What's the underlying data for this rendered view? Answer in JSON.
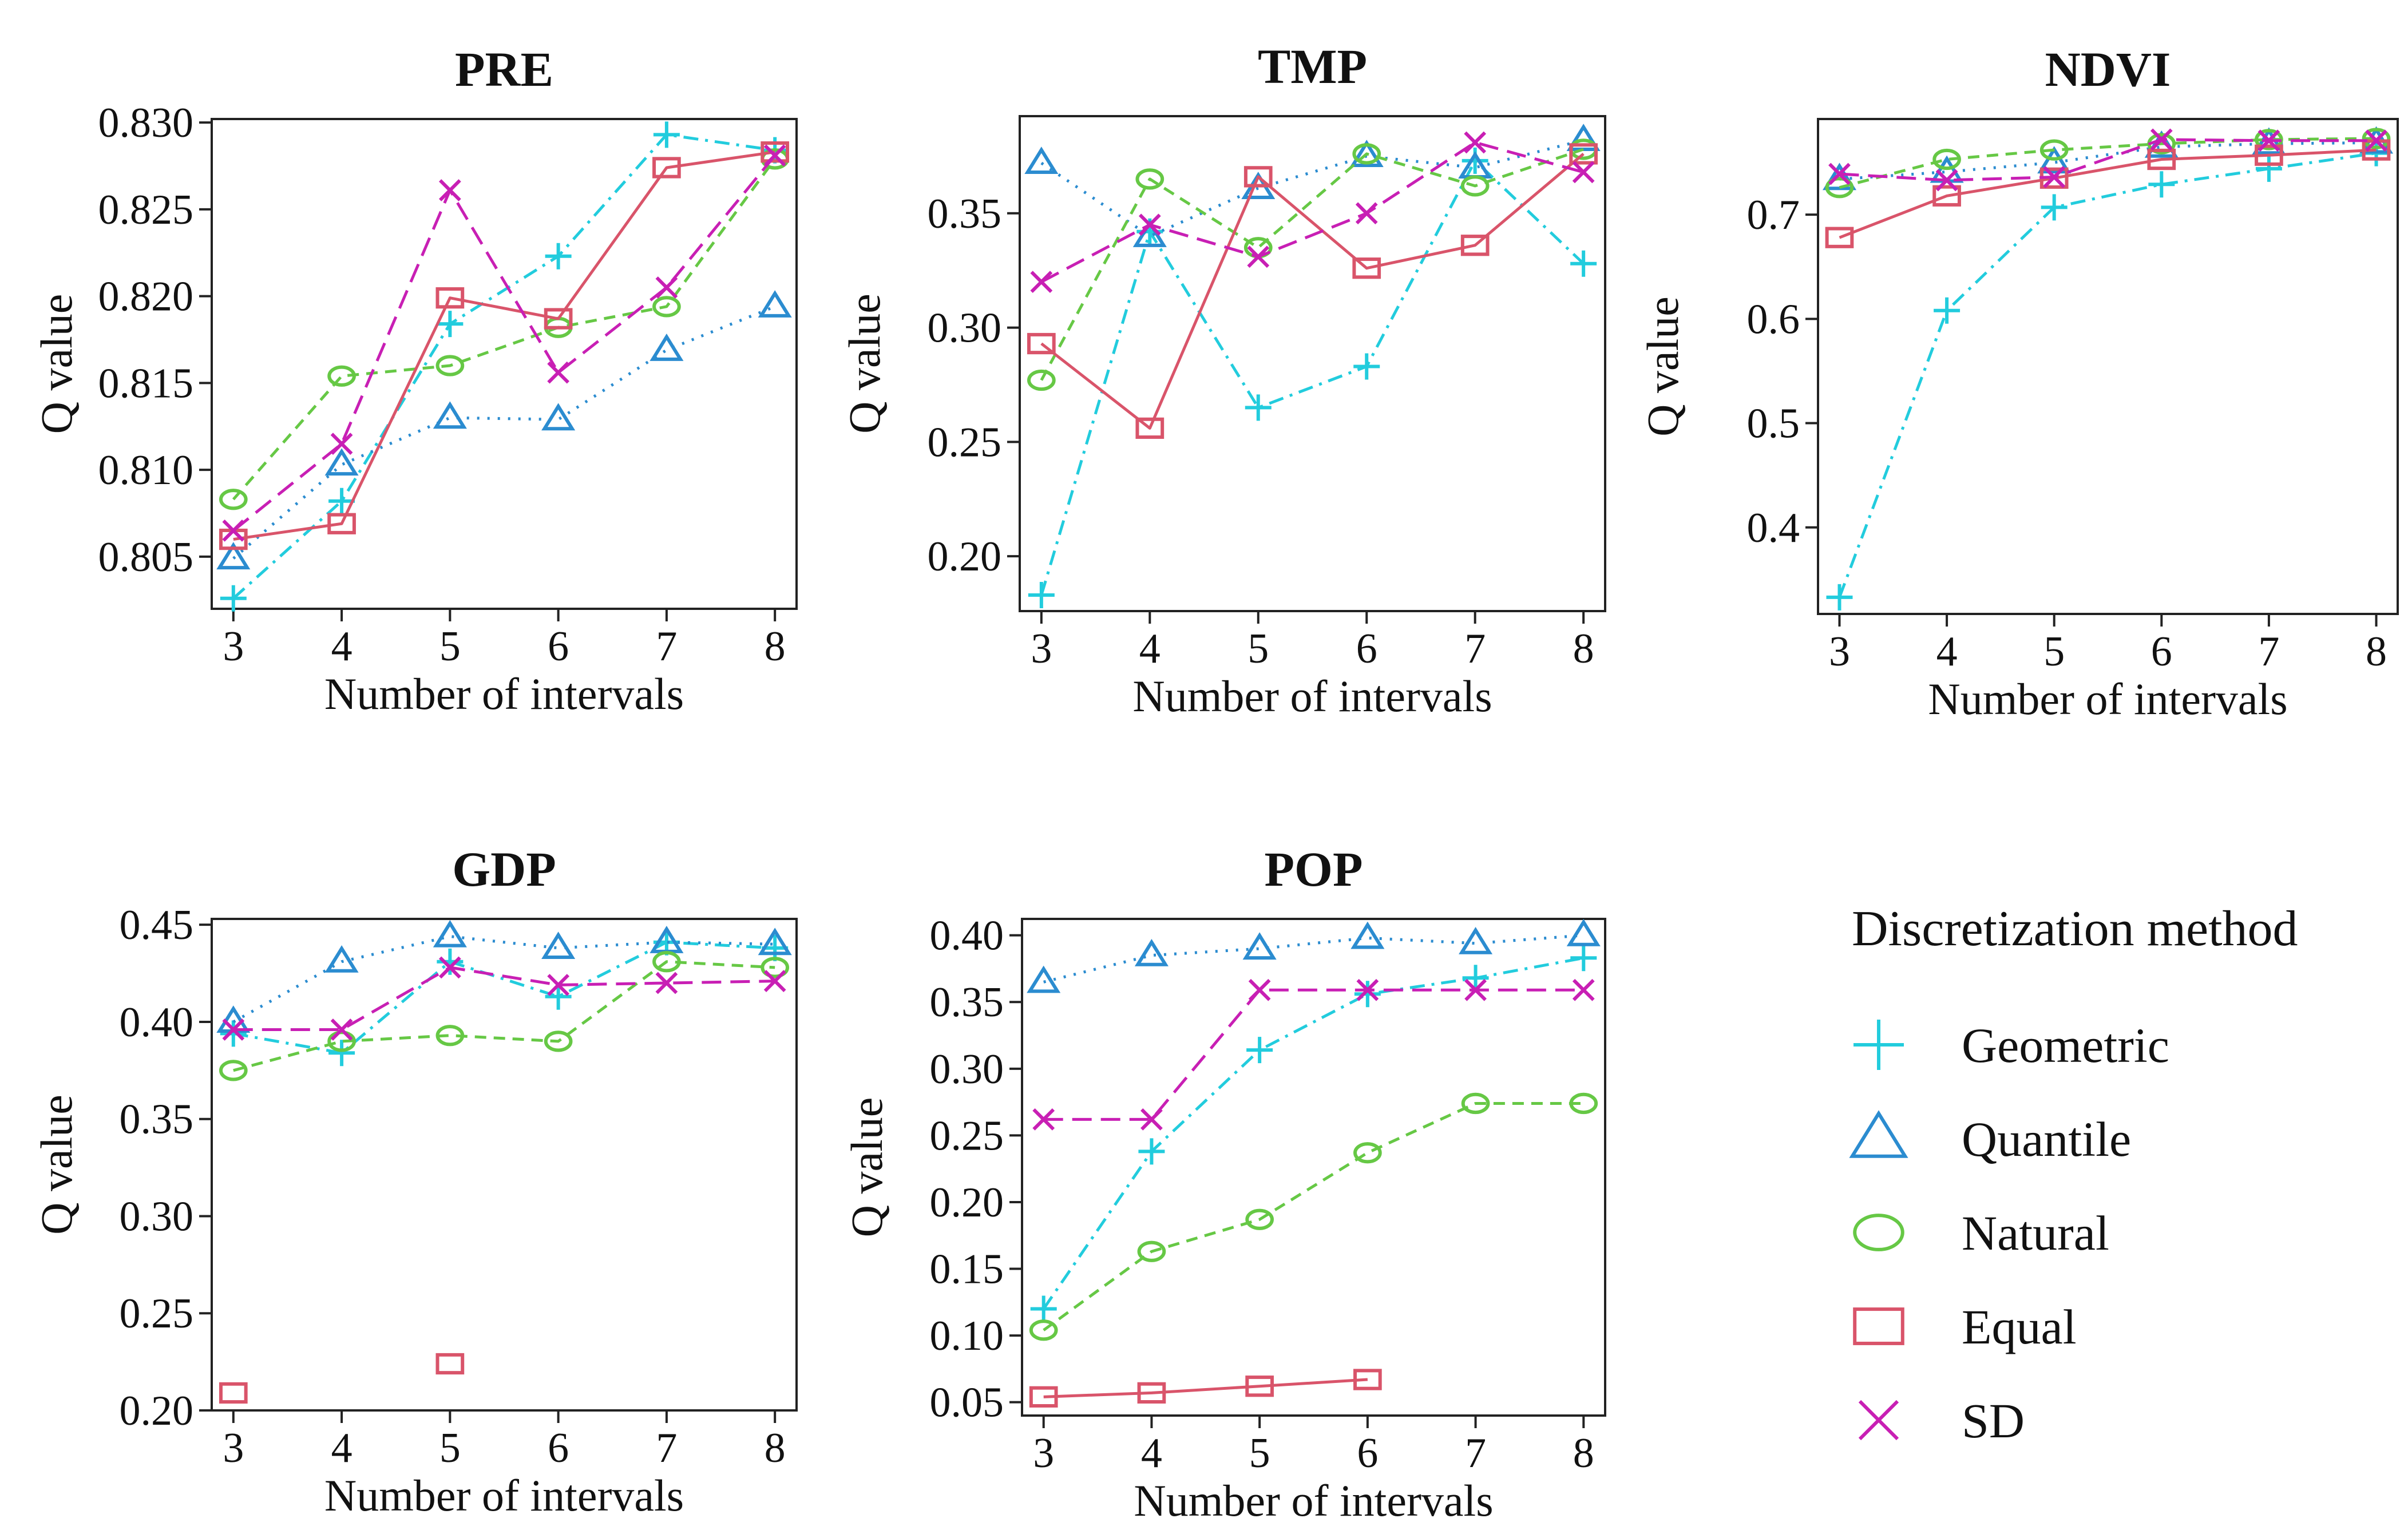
{
  "styles": {
    "Geometric": {
      "color": "#22CCDD",
      "dash": "26 12 5 12",
      "marker": "plus"
    },
    "Quantile": {
      "color": "#2B8CD0",
      "dash": "4 14",
      "marker": "triangle"
    },
    "Natural": {
      "color": "#66C845",
      "dash": "20 13",
      "marker": "circle"
    },
    "Equal": {
      "color": "#D9546A",
      "dash": "",
      "marker": "square"
    },
    "SD": {
      "color": "#C81FB4",
      "dash": "34 16",
      "marker": "x"
    }
  },
  "legend": {
    "title": "Discretization method",
    "items": [
      "Geometric",
      "Quantile",
      "Natural",
      "Equal",
      "SD"
    ]
  },
  "chart_data": [
    {
      "type": "line",
      "title": "PRE",
      "xlabel": "Number of intervals",
      "ylabel": "Q value",
      "x": [
        3,
        4,
        5,
        6,
        7,
        8
      ],
      "ylim": [
        0.802,
        0.8302
      ],
      "yticks": [
        "0.805",
        "0.810",
        "0.815",
        "0.820",
        "0.825",
        "0.830"
      ],
      "series": [
        {
          "name": "Geometric",
          "values": [
            0.8026,
            0.8082,
            0.8184,
            0.8223,
            0.8293,
            0.8284
          ]
        },
        {
          "name": "Quantile",
          "values": [
            0.8049,
            0.8103,
            0.813,
            0.8129,
            0.8169,
            0.8194
          ]
        },
        {
          "name": "Natural",
          "values": [
            0.8083,
            0.8154,
            0.816,
            0.8182,
            0.8194,
            0.8279
          ]
        },
        {
          "name": "Equal",
          "values": [
            0.806,
            0.8069,
            0.8199,
            0.8187,
            0.8274,
            0.8283
          ]
        },
        {
          "name": "SD",
          "values": [
            0.8065,
            0.8115,
            0.8261,
            0.8156,
            0.8205,
            0.8281
          ]
        }
      ]
    },
    {
      "type": "line",
      "title": "TMP",
      "xlabel": "Number of intervals",
      "ylabel": "Q value",
      "x": [
        3,
        4,
        5,
        6,
        7,
        8
      ],
      "ylim": [
        0.176,
        0.3925
      ],
      "yticks": [
        "0.20",
        "0.25",
        "0.30",
        "0.35"
      ],
      "series": [
        {
          "name": "Geometric",
          "values": [
            0.183,
            0.342,
            0.265,
            0.283,
            0.373,
            0.328
          ]
        },
        {
          "name": "Quantile",
          "values": [
            0.372,
            0.34,
            0.361,
            0.375,
            0.37,
            0.382
          ]
        },
        {
          "name": "Natural",
          "values": [
            0.277,
            0.365,
            0.335,
            0.376,
            0.362,
            0.378
          ]
        },
        {
          "name": "Equal",
          "values": [
            0.293,
            0.256,
            0.366,
            0.326,
            0.336,
            0.376
          ]
        },
        {
          "name": "SD",
          "values": [
            0.32,
            0.345,
            0.331,
            0.35,
            0.381,
            0.368
          ]
        }
      ]
    },
    {
      "type": "line",
      "title": "NDVI",
      "xlabel": "Number of intervals",
      "ylabel": "Q value",
      "x": [
        3,
        4,
        5,
        6,
        7,
        8
      ],
      "ylim": [
        0.317,
        0.7917
      ],
      "yticks": [
        "0.4",
        "0.5",
        "0.6",
        "0.7"
      ],
      "series": [
        {
          "name": "Geometric",
          "values": [
            0.333,
            0.608,
            0.707,
            0.729,
            0.744,
            0.759
          ]
        },
        {
          "name": "Quantile",
          "values": [
            0.734,
            0.741,
            0.75,
            0.765,
            0.768,
            0.769
          ]
        },
        {
          "name": "Natural",
          "values": [
            0.726,
            0.753,
            0.762,
            0.768,
            0.772,
            0.773
          ]
        },
        {
          "name": "Equal",
          "values": [
            0.678,
            0.718,
            0.735,
            0.753,
            0.757,
            0.762
          ]
        },
        {
          "name": "SD",
          "values": [
            0.739,
            0.733,
            0.736,
            0.772,
            0.771,
            0.771
          ]
        }
      ]
    },
    {
      "type": "line",
      "title": "GDP",
      "xlabel": "Number of intervals",
      "ylabel": "Q value",
      "x": [
        3,
        4,
        5,
        6,
        7,
        8
      ],
      "ylim": [
        0.2,
        0.453
      ],
      "yticks": [
        "0.20",
        "0.25",
        "0.30",
        "0.35",
        "0.40",
        "0.45"
      ],
      "series": [
        {
          "name": "Geometric",
          "values": [
            0.394,
            0.384,
            0.431,
            0.413,
            0.441,
            0.438
          ]
        },
        {
          "name": "Quantile",
          "values": [
            0.4,
            0.431,
            0.444,
            0.438,
            0.441,
            0.44
          ]
        },
        {
          "name": "Natural",
          "values": [
            0.375,
            0.39,
            0.393,
            0.39,
            0.431,
            0.428
          ]
        },
        {
          "name": "Equal",
          "values": [
            0.209,
            null,
            0.224,
            null,
            null,
            null
          ]
        },
        {
          "name": "SD",
          "values": [
            0.396,
            0.396,
            0.428,
            0.419,
            0.42,
            0.421
          ]
        }
      ]
    },
    {
      "type": "line",
      "title": "POP",
      "xlabel": "Number of intervals",
      "ylabel": "Q value",
      "x": [
        3,
        4,
        5,
        6,
        7,
        8
      ],
      "ylim": [
        0.04,
        0.4123
      ],
      "yticks": [
        "0.05",
        "0.10",
        "0.15",
        "0.20",
        "0.25",
        "0.30",
        "0.35",
        "0.40"
      ],
      "series": [
        {
          "name": "Geometric",
          "values": [
            0.12,
            0.238,
            0.314,
            0.356,
            0.368,
            0.383
          ]
        },
        {
          "name": "Quantile",
          "values": [
            0.365,
            0.385,
            0.39,
            0.398,
            0.394,
            0.4
          ]
        },
        {
          "name": "Natural",
          "values": [
            0.104,
            0.163,
            0.187,
            0.237,
            0.274,
            0.274
          ]
        },
        {
          "name": "Equal",
          "values": [
            0.054,
            0.057,
            0.062,
            0.067,
            null,
            null
          ]
        },
        {
          "name": "SD",
          "values": [
            0.262,
            0.262,
            0.359,
            0.359,
            0.359,
            0.359
          ]
        }
      ]
    }
  ]
}
